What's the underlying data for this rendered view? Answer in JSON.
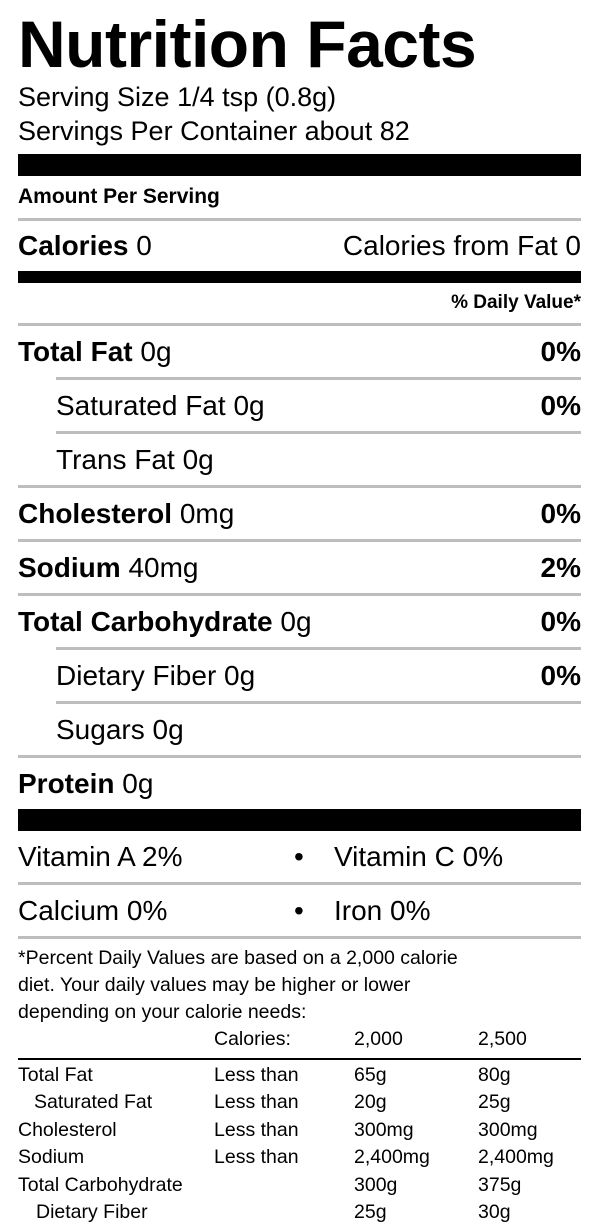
{
  "title": "Nutrition Facts",
  "serving_size": "Serving Size 1/4 tsp (0.8g)",
  "servings_per_container": "Servings Per Container about 82",
  "amount_per_serving": "Amount Per Serving",
  "calories": {
    "label": "Calories",
    "value": "0",
    "from_fat": "Calories from Fat 0"
  },
  "daily_value_header": "% Daily Value*",
  "nutrients": {
    "total_fat": {
      "label": "Total Fat",
      "amount": "0g",
      "dv": "0%"
    },
    "saturated_fat": {
      "label": "Saturated Fat",
      "amount": "0g",
      "dv": "0%"
    },
    "trans_fat": {
      "label": "Trans Fat",
      "amount": "0g"
    },
    "cholesterol": {
      "label": "Cholesterol",
      "amount": "0mg",
      "dv": "0%"
    },
    "sodium": {
      "label": "Sodium",
      "amount": "40mg",
      "dv": "2%"
    },
    "total_carbohydrate": {
      "label": "Total Carbohydrate",
      "amount": "0g",
      "dv": "0%"
    },
    "dietary_fiber": {
      "label": "Dietary Fiber",
      "amount": "0g",
      "dv": "0%"
    },
    "sugars": {
      "label": "Sugars",
      "amount": "0g"
    },
    "protein": {
      "label": "Protein",
      "amount": "0g"
    }
  },
  "vitamins": {
    "row1": {
      "left": "Vitamin A 2%",
      "right": "Vitamin C 0%"
    },
    "row2": {
      "left": "Calcium 0%",
      "right": "Iron 0%"
    },
    "bullet": "•"
  },
  "footnote": {
    "line1": "*Percent Daily Values are based on a 2,000 calorie",
    "line2": "diet. Your daily values may be higher or lower",
    "line3": "depending on your calorie needs:"
  },
  "footer_table": {
    "header": {
      "label": "Calories:",
      "col1": "2,000",
      "col2": "2,500"
    },
    "rows": [
      {
        "name": "Total Fat",
        "qualifier": "Less than",
        "v1": "65g",
        "v2": "80g"
      },
      {
        "name": "Saturated Fat",
        "qualifier": "Less than",
        "v1": "20g",
        "v2": "25g"
      },
      {
        "name": "Cholesterol",
        "qualifier": "Less than",
        "v1": "300mg",
        "v2": "300mg"
      },
      {
        "name": "Sodium",
        "qualifier": "Less than",
        "v1": "2,400mg",
        "v2": "2,400mg"
      },
      {
        "name": "Total Carbohydrate",
        "qualifier": "",
        "v1": "300g",
        "v2": "375g"
      },
      {
        "name": "Dietary Fiber",
        "qualifier": "",
        "v1": "25g",
        "v2": "30g"
      }
    ]
  }
}
